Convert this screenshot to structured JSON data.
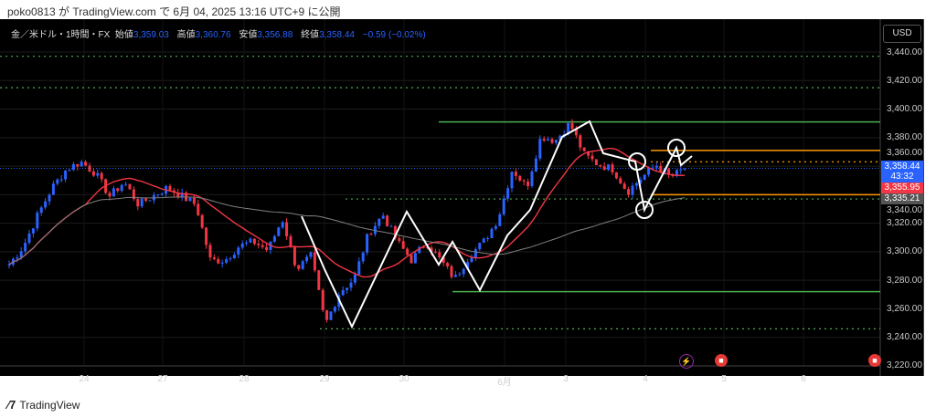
{
  "published": "poko0813 が TradingView.com で 6月 04, 2025 13:16 UTC+9 に公開",
  "legend": {
    "symbol": "金／米ドル・1時間・FX",
    "open_label": "始値",
    "open": "3,359.03",
    "high_label": "高値",
    "high": "3,360.76",
    "low_label": "安値",
    "low": "3,356.88",
    "close_label": "終値",
    "close": "3,358.44",
    "change": "−0.59 (−0.02%)"
  },
  "currency": "USD",
  "price_axis": [
    "3,440.00",
    "3,420.00",
    "3,400.00",
    "3,380.00",
    "3,360.00",
    "3,340.00",
    "3,320.00",
    "3,300.00",
    "3,280.00",
    "3,260.00",
    "3,240.00",
    "3,220.00"
  ],
  "price_tags": {
    "last": "3,358.44",
    "countdown": "43:32",
    "red": "3,355.95",
    "gray": "3,335.21"
  },
  "time_axis": [
    "24",
    "27",
    "28",
    "29",
    "30",
    "6月",
    "3",
    "4",
    "5",
    "6"
  ],
  "colors": {
    "up": "#2962ff",
    "down": "#f23645",
    "ma_fast": "#f23645",
    "ma_slow": "#808080",
    "green": "#4caf50",
    "orange": "#ff9800",
    "bg": "#000000"
  },
  "chart_data": {
    "type": "candlestick",
    "ylim": [
      3215,
      3450
    ],
    "closes": [
      3291,
      3304,
      3326,
      3345,
      3358,
      3363,
      3355,
      3339,
      3349,
      3333,
      3339,
      3345,
      3339,
      3333,
      3294,
      3294,
      3304,
      3307,
      3301,
      3323,
      3288,
      3297,
      3249,
      3272,
      3281,
      3313,
      3326,
      3307,
      3294,
      3307,
      3294,
      3281,
      3297,
      3307,
      3323,
      3358,
      3345,
      3381,
      3378,
      3390,
      3368,
      3361,
      3358,
      3342,
      3352,
      3361,
      3352,
      3358.44
    ],
    "levels": [
      {
        "price": 3437,
        "style": "dotted",
        "color": "green"
      },
      {
        "price": 3415,
        "style": "dotted",
        "color": "green"
      },
      {
        "price": 3391,
        "style": "solid",
        "color": "green"
      },
      {
        "price": 3371,
        "style": "solid",
        "color": "orange"
      },
      {
        "price": 3363,
        "style": "dotted",
        "color": "orange"
      },
      {
        "price": 3340,
        "style": "solid",
        "color": "orange"
      },
      {
        "price": 3337,
        "style": "dotted",
        "color": "green"
      },
      {
        "price": 3272,
        "style": "solid",
        "color": "green"
      },
      {
        "price": 3246,
        "style": "dotted",
        "color": "green"
      }
    ]
  },
  "footer": {
    "brand": "TradingView"
  }
}
